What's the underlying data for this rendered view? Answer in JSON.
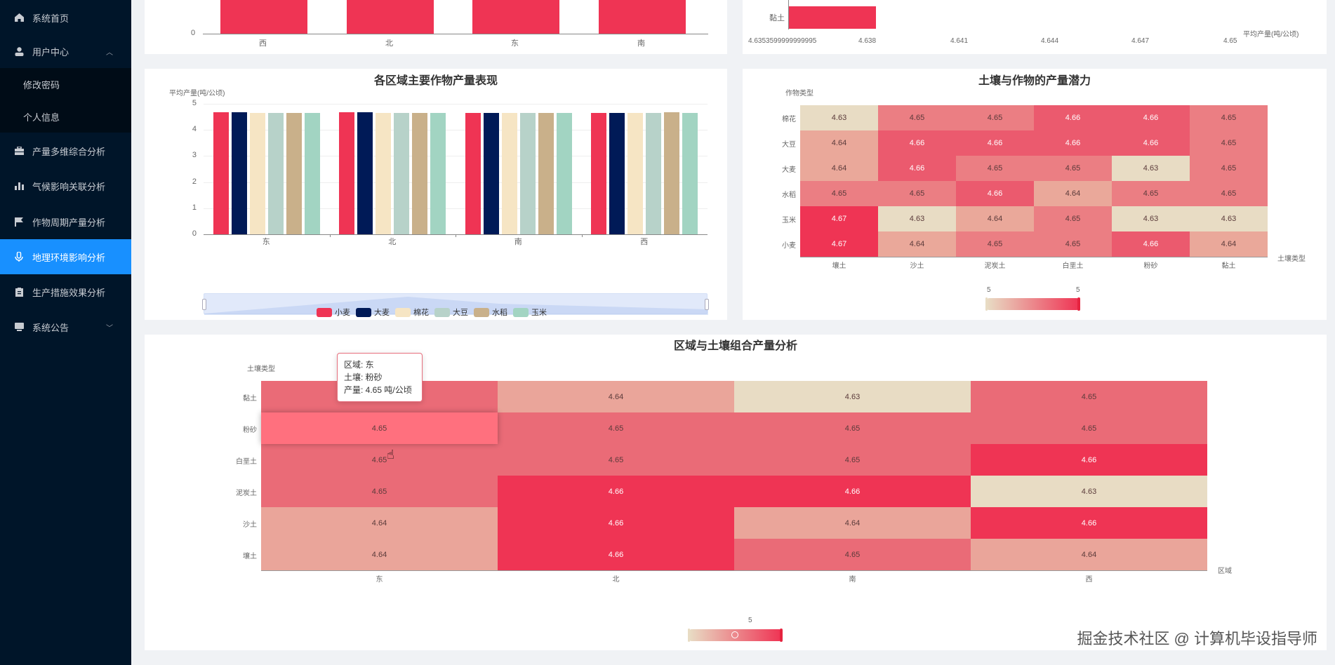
{
  "sidebar": {
    "items": [
      {
        "label": "系统首页",
        "icon": "home-icon"
      },
      {
        "label": "用户中心",
        "icon": "user-icon",
        "expanded": true
      },
      {
        "label": "产量多维综合分析",
        "icon": "briefcase-icon"
      },
      {
        "label": "气候影响关联分析",
        "icon": "bar-chart-icon"
      },
      {
        "label": "作物周期产量分析",
        "icon": "flag-icon"
      },
      {
        "label": "地理环境影响分析",
        "icon": "microphone-icon",
        "active": true
      },
      {
        "label": "生产措施效果分析",
        "icon": "clipboard-icon"
      },
      {
        "label": "系统公告",
        "icon": "monitor-icon"
      }
    ],
    "submenu": [
      {
        "label": "修改密码"
      },
      {
        "label": "个人信息"
      }
    ],
    "active_color": "#1890ff",
    "bg_color": "#001529"
  },
  "top_left_chart": {
    "y_tick_zero": "0",
    "categories": [
      "西",
      "北",
      "东",
      "南"
    ]
  },
  "top_right_chart": {
    "category": "黏土",
    "x_ticks": [
      "4.6353599999999995",
      "4.638",
      "4.641",
      "4.644",
      "4.647",
      "4.65"
    ],
    "x_axis_name": "平均产量(吨/公顷)"
  },
  "chart_data": [
    {
      "type": "bar",
      "title": "各区域主要作物产量表现",
      "ylabel": "平均产量(吨/公顷)",
      "xlabel": "",
      "ylim": [
        0,
        5
      ],
      "y_ticks": [
        "5",
        "4",
        "3",
        "2",
        "1",
        "0"
      ],
      "categories": [
        "东",
        "北",
        "南",
        "西"
      ],
      "series": [
        {
          "name": "小麦",
          "color": "#ef3454",
          "values": [
            4.67,
            4.67,
            4.66,
            4.66
          ]
        },
        {
          "name": "大麦",
          "color": "#001a57",
          "values": [
            4.67,
            4.67,
            4.66,
            4.65
          ]
        },
        {
          "name": "棉花",
          "color": "#f6e5c4",
          "values": [
            4.65,
            4.65,
            4.65,
            4.65
          ]
        },
        {
          "name": "大豆",
          "color": "#b7d2c9",
          "values": [
            4.65,
            4.66,
            4.66,
            4.66
          ]
        },
        {
          "name": "水稻",
          "color": "#c9b08a",
          "values": [
            4.65,
            4.65,
            4.66,
            4.67
          ]
        },
        {
          "name": "玉米",
          "color": "#a2d4c2",
          "values": [
            4.65,
            4.66,
            4.65,
            4.65
          ]
        }
      ],
      "legend_position": "bottom",
      "grid": true
    },
    {
      "type": "heatmap",
      "title": "土壤与作物的产量潜力",
      "xlabel": "土壤类型",
      "ylabel": "作物类型",
      "x": [
        "壤土",
        "沙土",
        "泥炭土",
        "白垩土",
        "粉砂",
        "黏土"
      ],
      "y": [
        "棉花",
        "大豆",
        "大麦",
        "水稻",
        "玉米",
        "小麦"
      ],
      "values": [
        [
          4.63,
          4.65,
          4.65,
          4.66,
          4.66,
          4.65
        ],
        [
          4.64,
          4.66,
          4.66,
          4.66,
          4.66,
          4.65
        ],
        [
          4.64,
          4.66,
          4.65,
          4.65,
          4.63,
          4.65
        ],
        [
          4.65,
          4.65,
          4.66,
          4.64,
          4.65,
          4.65
        ],
        [
          4.67,
          4.63,
          4.64,
          4.65,
          4.63,
          4.63
        ],
        [
          4.67,
          4.64,
          4.65,
          4.65,
          4.66,
          4.64
        ]
      ],
      "visual_map": {
        "min_label": "5",
        "max_label": "5",
        "low_color": "#e8dcc4",
        "high_color": "#ef3454"
      }
    },
    {
      "type": "heatmap",
      "title": "区域与土壤组合产量分析",
      "xlabel": "区域",
      "ylabel": "土壤类型",
      "x": [
        "东",
        "北",
        "南",
        "西"
      ],
      "y": [
        "黏土",
        "粉砂",
        "白垩土",
        "泥炭土",
        "沙土",
        "壤土"
      ],
      "values": [
        [
          4.65,
          4.64,
          4.63,
          4.65
        ],
        [
          4.65,
          4.65,
          4.65,
          4.65
        ],
        [
          4.65,
          4.65,
          4.65,
          4.66
        ],
        [
          4.65,
          4.66,
          4.66,
          4.63
        ],
        [
          4.64,
          4.66,
          4.64,
          4.66
        ],
        [
          4.64,
          4.66,
          4.65,
          4.64
        ]
      ],
      "visual_map": {
        "label": "5",
        "low_color": "#e8dcc4",
        "high_color": "#ef3454"
      },
      "tooltip": {
        "region": "区域: 东",
        "soil": "土壤: 粉砂",
        "yield": "产量: 4.65 吨/公顷"
      }
    }
  ],
  "watermark": "掘金技术社区 @ 计算机毕设指导师"
}
